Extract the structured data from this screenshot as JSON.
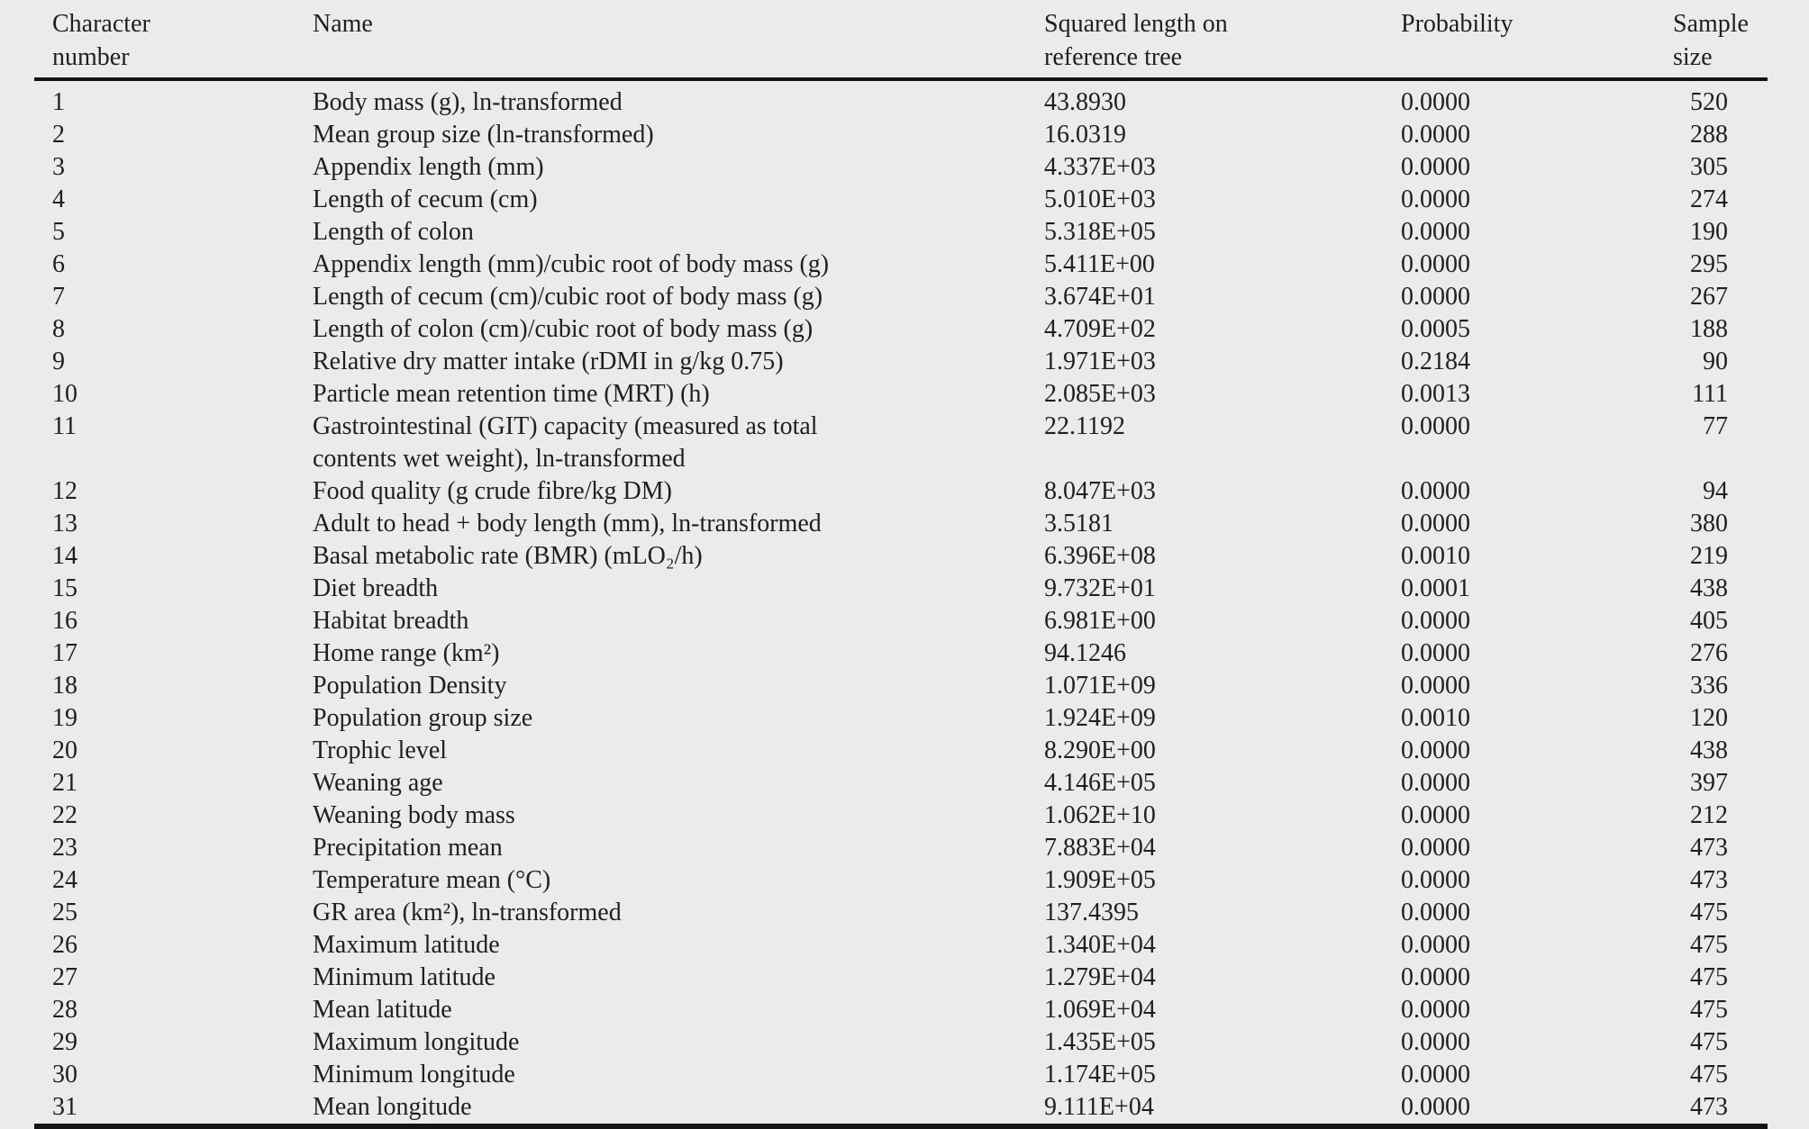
{
  "colors": {
    "background": "#ebebeb",
    "text": "#1f1f1f",
    "rule": "#141414"
  },
  "table": {
    "columns": [
      {
        "id": "num",
        "label": "Character\nnumber"
      },
      {
        "id": "name",
        "label": "Name"
      },
      {
        "id": "sqlen",
        "label": "Squared length on\nreference tree"
      },
      {
        "id": "prob",
        "label": "Probability"
      },
      {
        "id": "n",
        "label": "Sample\nsize"
      }
    ],
    "rows": [
      {
        "num": "1",
        "name": "Body mass (g), ln-transformed",
        "sqlen": "43.8930",
        "prob": "0.0000",
        "n": "520"
      },
      {
        "num": "2",
        "name": "Mean group size (ln-transformed)",
        "sqlen": "16.0319",
        "prob": "0.0000",
        "n": "288"
      },
      {
        "num": "3",
        "name": "Appendix length (mm)",
        "sqlen": "4.337E+03",
        "prob": "0.0000",
        "n": "305"
      },
      {
        "num": "4",
        "name": "Length of cecum (cm)",
        "sqlen": "5.010E+03",
        "prob": "0.0000",
        "n": "274"
      },
      {
        "num": "5",
        "name": "Length of colon",
        "sqlen": "5.318E+05",
        "prob": "0.0000",
        "n": "190"
      },
      {
        "num": "6",
        "name": "Appendix length (mm)/cubic root of body mass (g)",
        "sqlen": "5.411E+00",
        "prob": "0.0000",
        "n": "295"
      },
      {
        "num": "7",
        "name": "Length of cecum (cm)/cubic root of body mass (g)",
        "sqlen": "3.674E+01",
        "prob": "0.0000",
        "n": "267"
      },
      {
        "num": "8",
        "name": "Length of colon (cm)/cubic root of body mass (g)",
        "sqlen": "4.709E+02",
        "prob": "0.0005",
        "n": "188"
      },
      {
        "num": "9",
        "name": "Relative dry matter intake (rDMI in g/kg 0.75)",
        "sqlen": "1.971E+03",
        "prob": "0.2184",
        "n": "90"
      },
      {
        "num": "10",
        "name": "Particle mean retention time (MRT) (h)",
        "sqlen": "2.085E+03",
        "prob": "0.0013",
        "n": "111"
      },
      {
        "num": "11",
        "name": "Gastrointestinal (GIT) capacity (measured as total\ncontents wet weight), ln-transformed",
        "sqlen": "22.1192",
        "prob": "0.0000",
        "n": "77"
      },
      {
        "num": "12",
        "name": "Food quality (g crude fibre/kg DM)",
        "sqlen": "8.047E+03",
        "prob": "0.0000",
        "n": "94"
      },
      {
        "num": "13",
        "name": "Adult to head + body length (mm), ln-transformed",
        "sqlen": "3.5181",
        "prob": "0.0000",
        "n": "380"
      },
      {
        "num": "14",
        "name": "Basal metabolic rate (BMR) (mLO₂/h)",
        "sqlen": "6.396E+08",
        "prob": "0.0010",
        "n": "219"
      },
      {
        "num": "15",
        "name": "Diet breadth",
        "sqlen": "9.732E+01",
        "prob": "0.0001",
        "n": "438"
      },
      {
        "num": "16",
        "name": "Habitat breadth",
        "sqlen": "6.981E+00",
        "prob": "0.0000",
        "n": "405"
      },
      {
        "num": "17",
        "name": "Home range (km²)",
        "sqlen": "94.1246",
        "prob": "0.0000",
        "n": "276"
      },
      {
        "num": "18",
        "name": "Population Density",
        "sqlen": "1.071E+09",
        "prob": "0.0000",
        "n": "336"
      },
      {
        "num": "19",
        "name": "Population group size",
        "sqlen": "1.924E+09",
        "prob": "0.0010",
        "n": "120"
      },
      {
        "num": "20",
        "name": "Trophic level",
        "sqlen": "8.290E+00",
        "prob": "0.0000",
        "n": "438"
      },
      {
        "num": "21",
        "name": "Weaning age",
        "sqlen": "4.146E+05",
        "prob": "0.0000",
        "n": "397"
      },
      {
        "num": "22",
        "name": "Weaning body mass",
        "sqlen": "1.062E+10",
        "prob": "0.0000",
        "n": "212"
      },
      {
        "num": "23",
        "name": "Precipitation mean",
        "sqlen": "7.883E+04",
        "prob": "0.0000",
        "n": "473"
      },
      {
        "num": "24",
        "name": "Temperature mean (°C)",
        "sqlen": "1.909E+05",
        "prob": "0.0000",
        "n": "473"
      },
      {
        "num": "25",
        "name": "GR area (km²), ln-transformed",
        "sqlen": "137.4395",
        "prob": "0.0000",
        "n": "475"
      },
      {
        "num": "26",
        "name": "Maximum latitude",
        "sqlen": "1.340E+04",
        "prob": "0.0000",
        "n": "475"
      },
      {
        "num": "27",
        "name": "Minimum latitude",
        "sqlen": "1.279E+04",
        "prob": "0.0000",
        "n": "475"
      },
      {
        "num": "28",
        "name": "Mean latitude",
        "sqlen": "1.069E+04",
        "prob": "0.0000",
        "n": "475"
      },
      {
        "num": "29",
        "name": "Maximum longitude",
        "sqlen": "1.435E+05",
        "prob": "0.0000",
        "n": "475"
      },
      {
        "num": "30",
        "name": "Minimum longitude",
        "sqlen": "1.174E+05",
        "prob": "0.0000",
        "n": "475"
      },
      {
        "num": "31",
        "name": "Mean longitude",
        "sqlen": "9.111E+04",
        "prob": "0.0000",
        "n": "473"
      }
    ]
  }
}
